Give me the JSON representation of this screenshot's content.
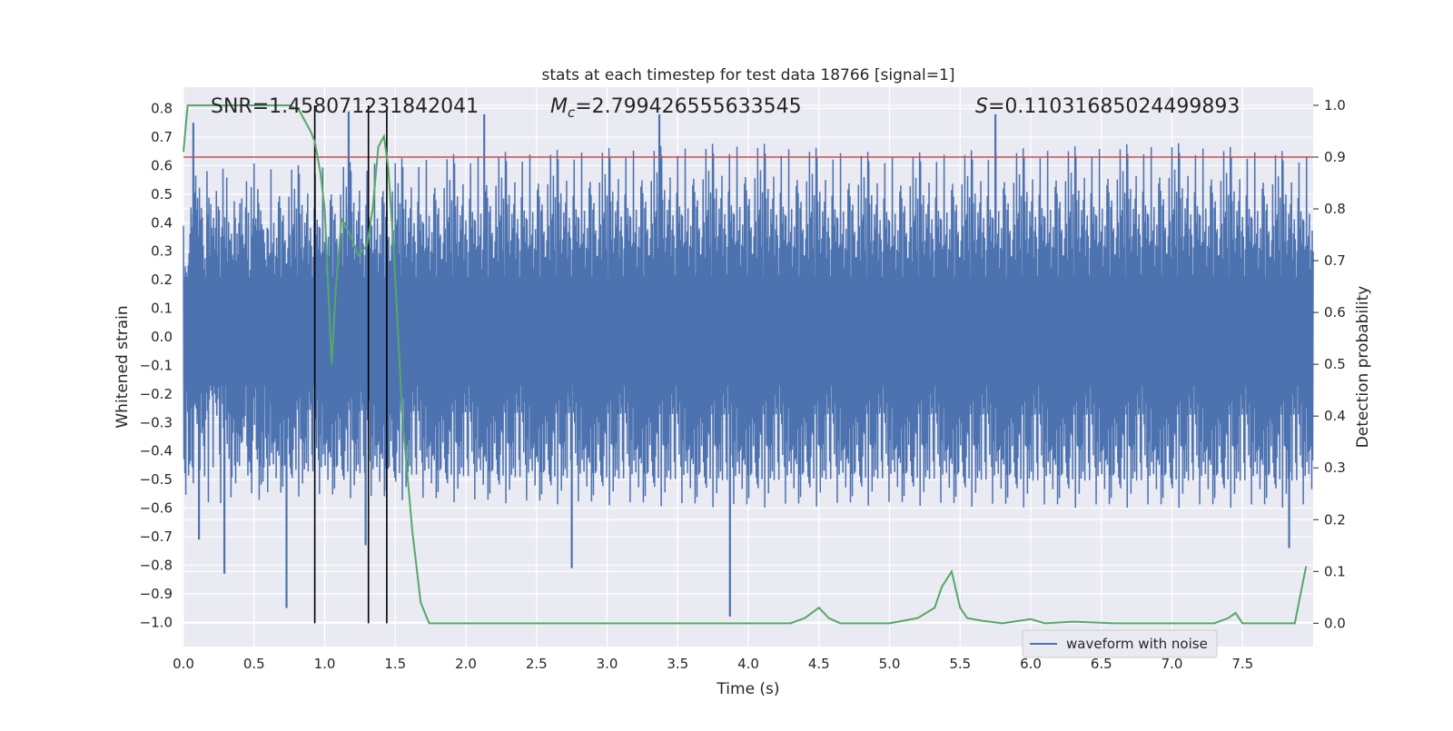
{
  "chart_data": {
    "type": "line",
    "title": "stats at each timestep for test data 18766 [signal=1]",
    "xlabel": "Time (s)",
    "ylabel": "Whitened strain",
    "y2label": "Detection probability",
    "xlim": [
      0,
      8
    ],
    "ylim": [
      -1.085,
      0.875
    ],
    "y2lim": [
      -0.045,
      1.035
    ],
    "xticks": [
      "0.0",
      "0.5",
      "1.0",
      "1.5",
      "2.0",
      "2.5",
      "3.0",
      "3.5",
      "4.0",
      "4.5",
      "5.0",
      "5.5",
      "6.0",
      "6.5",
      "7.0",
      "7.5"
    ],
    "yticks": [
      "0.8",
      "0.7",
      "0.6",
      "0.5",
      "0.4",
      "0.3",
      "0.2",
      "0.1",
      "0.0",
      "−0.1",
      "−0.2",
      "−0.3",
      "−0.4",
      "−0.5",
      "−0.6",
      "−0.7",
      "−0.8",
      "−0.9",
      "−1.0"
    ],
    "y2ticks": [
      "1.0",
      "0.9",
      "0.8",
      "0.7",
      "0.6",
      "0.5",
      "0.4",
      "0.3",
      "0.2",
      "0.1",
      "0.0"
    ],
    "grid": true,
    "legend": {
      "placement": "lower-right",
      "entries": [
        "waveform with noise"
      ]
    },
    "annotations": {
      "snr": "SNR=1.458071231842041",
      "mc_symbol": "M",
      "mc_sub": "c",
      "mc_value": "=2.799426555633545",
      "s_symbol": "S",
      "s_value": "=0.11031685024499893"
    },
    "threshold_probability": 0.9,
    "vertical_markers_s": [
      0.93,
      1.31,
      1.44
    ],
    "noise_envelope": {
      "x": [
        0,
        1,
        2,
        3,
        4,
        5,
        6,
        7,
        8
      ],
      "upper": [
        0.62,
        0.64,
        0.68,
        0.7,
        0.72,
        0.68,
        0.7,
        0.72,
        0.68
      ],
      "lower": [
        -0.6,
        -0.62,
        -0.64,
        -0.65,
        -0.66,
        -0.65,
        -0.66,
        -0.66,
        -0.66
      ]
    },
    "waveform_spikes": [
      {
        "x": 0.29,
        "y": -0.83
      },
      {
        "x": 0.73,
        "y": -0.95
      },
      {
        "x": 3.87,
        "y": -0.98
      },
      {
        "x": 7.83,
        "y": -0.74
      },
      {
        "x": 0.11,
        "y": -0.71
      },
      {
        "x": 0.07,
        "y": 0.75
      },
      {
        "x": 1.17,
        "y": 0.79
      },
      {
        "x": 1.29,
        "y": -0.73
      },
      {
        "x": 2.75,
        "y": -0.81
      },
      {
        "x": 3.37,
        "y": 0.78
      },
      {
        "x": 2.13,
        "y": 0.78
      },
      {
        "x": 5.75,
        "y": 0.78
      }
    ],
    "series": [
      {
        "name": "waveform with noise",
        "color": "#4c72b0",
        "axis": "left",
        "note": "dense noisy strain trace"
      },
      {
        "color": "#55a868",
        "axis": "right",
        "x": [
          0.0,
          0.03,
          0.08,
          0.2,
          0.4,
          0.6,
          0.75,
          0.82,
          0.9,
          0.93,
          0.97,
          1.0,
          1.05,
          1.08,
          1.12,
          1.18,
          1.24,
          1.3,
          1.34,
          1.38,
          1.42,
          1.45,
          1.49,
          1.55,
          1.62,
          1.68,
          1.74,
          1.8,
          2.0,
          2.2,
          2.5,
          3.0,
          3.3,
          3.5,
          3.8,
          4.0,
          4.3,
          4.4,
          4.5,
          4.57,
          4.65,
          4.8,
          5.0,
          5.2,
          5.32,
          5.37,
          5.44,
          5.5,
          5.55,
          5.65,
          5.8,
          6.0,
          6.1,
          6.3,
          6.6,
          7.0,
          7.3,
          7.4,
          7.45,
          7.5,
          7.7,
          7.87,
          7.95
        ],
        "y": [
          0.91,
          1.0,
          1.0,
          1.0,
          1.0,
          1.0,
          1.0,
          0.99,
          0.95,
          0.93,
          0.87,
          0.8,
          0.5,
          0.65,
          0.78,
          0.75,
          0.71,
          0.73,
          0.8,
          0.92,
          0.94,
          0.88,
          0.72,
          0.4,
          0.18,
          0.04,
          0.0,
          0.0,
          0.0,
          0.0,
          0.0,
          0.0,
          0.0,
          0.0,
          0.0,
          0.0,
          0.0,
          0.01,
          0.03,
          0.01,
          0.0,
          0.0,
          0.0,
          0.01,
          0.03,
          0.07,
          0.1,
          0.03,
          0.01,
          0.005,
          0.0,
          0.008,
          0.0,
          0.003,
          0.0,
          0.0,
          0.0,
          0.01,
          0.02,
          0.0,
          0.0,
          0.0,
          0.11
        ]
      }
    ]
  }
}
